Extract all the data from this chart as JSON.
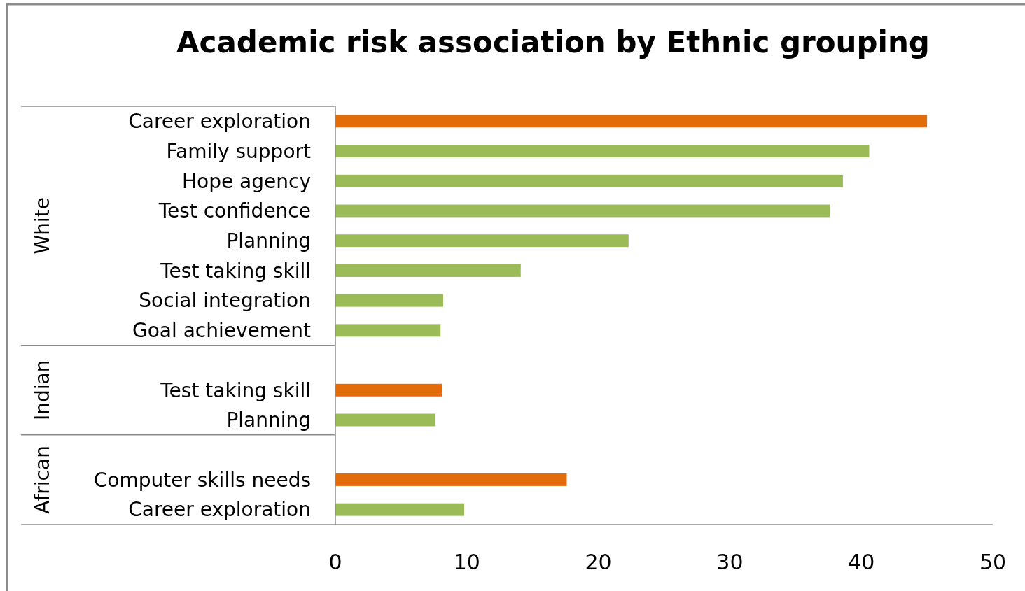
{
  "chart_data": {
    "type": "bar",
    "orientation": "horizontal",
    "title": "Academic risk association by Ethnic grouping",
    "categories": [
      "Career exploration",
      "Family support",
      "Hope agency",
      "Test confidence",
      "Planning",
      "Test taking skill",
      "Social integration",
      "Goal achievement",
      null,
      "Test taking skill",
      "Planning",
      null,
      "Computer skills needs",
      "Career exploration"
    ],
    "values": [
      45.0,
      40.6,
      38.6,
      37.6,
      22.3,
      14.1,
      8.2,
      8.0,
      null,
      8.1,
      7.6,
      null,
      17.6,
      9.8
    ],
    "colors": [
      "#e36c0a",
      "#9bbb59",
      "#9bbb59",
      "#9bbb59",
      "#9bbb59",
      "#9bbb59",
      "#9bbb59",
      "#9bbb59",
      null,
      "#e36c0a",
      "#9bbb59",
      null,
      "#e36c0a",
      "#9bbb59"
    ],
    "annotations": [
      "White",
      "Indian",
      "African"
    ],
    "xlim": [
      0,
      50
    ],
    "xticks": [
      0,
      10,
      20,
      30,
      40,
      50
    ],
    "grid": false
  }
}
